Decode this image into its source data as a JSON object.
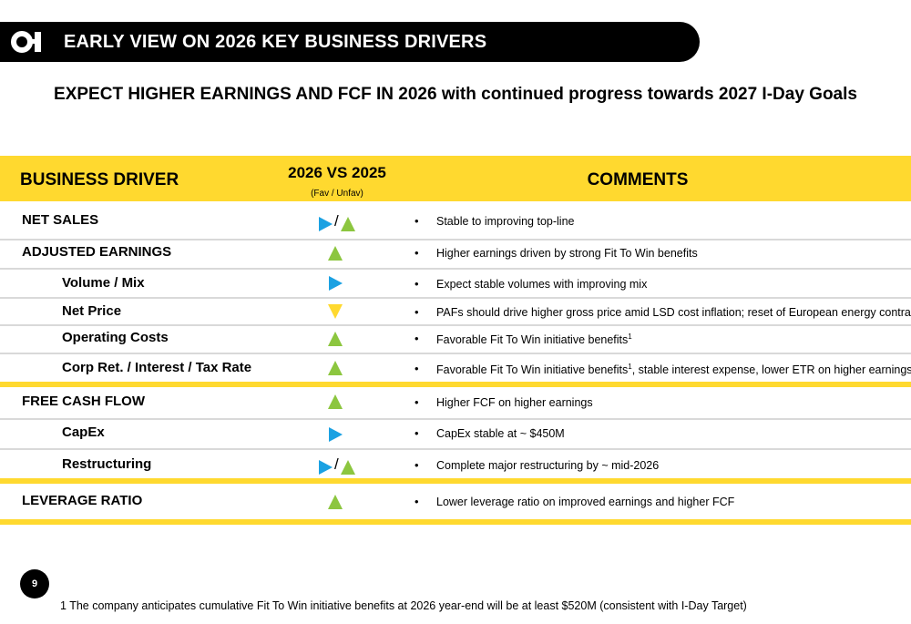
{
  "header": {
    "logo_text": "O-I",
    "title": "EARLY VIEW ON 2026 KEY BUSINESS DRIVERS"
  },
  "subtitle": {
    "bold_part": "EXPECT HIGHER EARNINGS AND FCF IN 2026",
    "rest_part": " with continued progress towards 2027 I-Day Goals"
  },
  "table_header": {
    "driver": "BUSINESS DRIVER",
    "comparison": "2026 VS 2025",
    "comparison_sub": "(Fav / Unfav)",
    "comments": "COMMENTS"
  },
  "colors": {
    "yellow": "#FFD92F",
    "up_green": "#8CC63F",
    "flat_blue": "#1BA1E2",
    "down_yellow": "#FFD92F"
  },
  "rows": [
    {
      "driver": "NET SALES",
      "level": 0,
      "indicator": [
        "right-arrow-icon",
        "up-triangle-icon"
      ],
      "comment": "Stable to improving top-line",
      "sup": ""
    },
    {
      "driver": "ADJUSTED EARNINGS",
      "level": 0,
      "indicator": [
        "up-triangle-icon"
      ],
      "comment": "Higher earnings driven by strong Fit To Win benefits",
      "sup": ""
    },
    {
      "driver": "Volume / Mix",
      "level": 1,
      "indicator": [
        "right-arrow-icon"
      ],
      "comment": "Expect stable volumes with improving mix",
      "sup": ""
    },
    {
      "driver": "Net Price",
      "level": 1,
      "indicator": [
        "down-triangle-icon"
      ],
      "comment": "PAFs should drive higher gross price amid LSD cost inflation;  reset of European energy contracts",
      "sup": ""
    },
    {
      "driver": "Operating Costs",
      "level": 1,
      "indicator": [
        "up-triangle-icon"
      ],
      "comment": "Favorable Fit To Win initiative benefits",
      "sup": "1"
    },
    {
      "driver": "Corp Ret. / Interest / Tax Rate",
      "level": 1,
      "indicator": [
        "up-triangle-icon"
      ],
      "comment": "Favorable Fit To Win initiative benefits",
      "sup": "1",
      "comment_tail": ", stable interest expense, lower ETR on higher earnings"
    },
    {
      "driver": "FREE CASH FLOW",
      "level": 0,
      "indicator": [
        "up-triangle-icon"
      ],
      "comment": "Higher FCF on higher earnings",
      "sup": ""
    },
    {
      "driver": "CapEx",
      "level": 1,
      "indicator": [
        "right-arrow-icon"
      ],
      "comment": "CapEx stable at ~ $450M",
      "sup": ""
    },
    {
      "driver": "Restructuring",
      "level": 1,
      "indicator": [
        "right-arrow-icon",
        "up-triangle-icon"
      ],
      "comment": "Complete major restructuring by ~ mid-2026",
      "sup": ""
    },
    {
      "driver": "LEVERAGE RATIO",
      "level": 0,
      "indicator": [
        "up-triangle-icon"
      ],
      "comment": "Lower leverage ratio on improved earnings and higher FCF",
      "sup": ""
    }
  ],
  "indicator_separator": "/",
  "bullet": "•",
  "footer": {
    "page_number": "9",
    "footnote": "1 The company anticipates cumulative Fit To Win initiative benefits at 2026 year-end will be at least $520M (consistent with I-Day Target)"
  }
}
